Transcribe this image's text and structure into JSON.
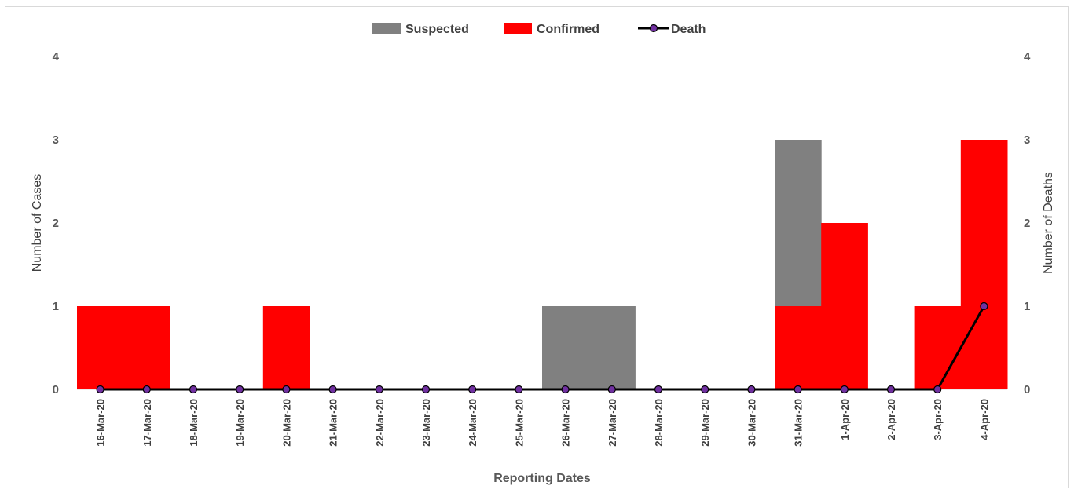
{
  "chart_data": {
    "type": "bar",
    "categories": [
      "16-Mar-20",
      "17-Mar-20",
      "18-Mar-20",
      "19-Mar-20",
      "20-Mar-20",
      "21-Mar-20",
      "22-Mar-20",
      "23-Mar-20",
      "24-Mar-20",
      "25-Mar-20",
      "26-Mar-20",
      "27-Mar-20",
      "28-Mar-20",
      "29-Mar-20",
      "30-Mar-20",
      "31-Mar-20",
      "1-Apr-20",
      "2-Apr-20",
      "3-Apr-20",
      "4-Apr-20"
    ],
    "series": [
      {
        "name": "Suspected",
        "type": "bar",
        "color": "#808080",
        "values": [
          0,
          0,
          0,
          0,
          0,
          0,
          0,
          0,
          0,
          0,
          1,
          1,
          0,
          0,
          0,
          2,
          0,
          0,
          0,
          0
        ]
      },
      {
        "name": "Confirmed",
        "type": "bar",
        "color": "#ff0000",
        "values": [
          1,
          1,
          0,
          0,
          1,
          0,
          0,
          0,
          0,
          0,
          0,
          0,
          0,
          0,
          0,
          1,
          2,
          0,
          1,
          3
        ]
      },
      {
        "name": "Death",
        "type": "line",
        "axis": "right",
        "color": "#000000",
        "marker_color": "#7030a0",
        "values": [
          0,
          0,
          0,
          0,
          0,
          0,
          0,
          0,
          0,
          0,
          0,
          0,
          0,
          0,
          0,
          0,
          0,
          0,
          0,
          1
        ]
      }
    ],
    "stacked": true,
    "xlabel": "Reporting Dates",
    "ylabel": "Number of Cases",
    "y2label": "Number of Deaths",
    "ylim": [
      0,
      4
    ],
    "y2lim": [
      0,
      4
    ],
    "yticks": [
      0,
      1,
      2,
      3,
      4
    ],
    "y2ticks": [
      0,
      1,
      2,
      3,
      4
    ],
    "grid": false,
    "legend_position": "top-center"
  }
}
